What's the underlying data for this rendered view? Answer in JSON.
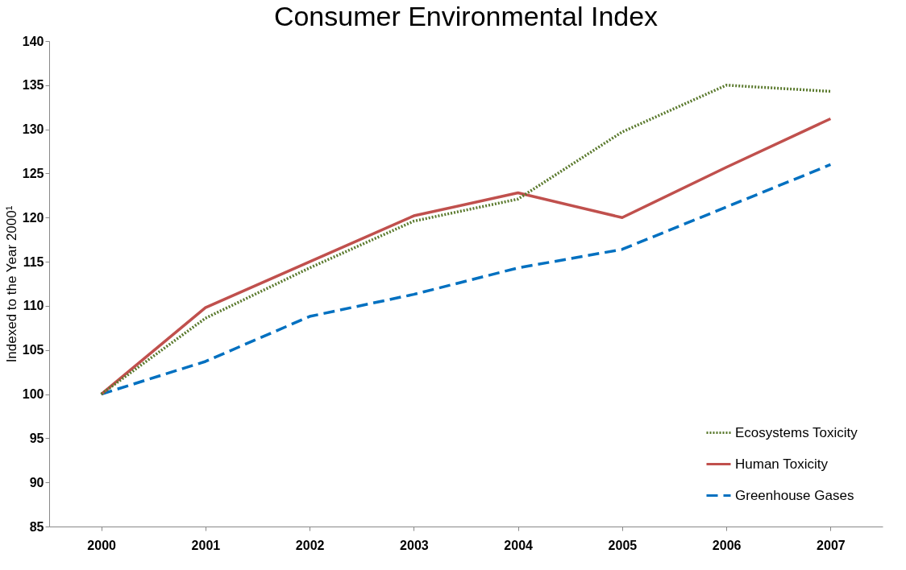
{
  "chart_data": {
    "type": "line",
    "title": "Consumer Environmental Index",
    "ylabel": "Indexed to the Year 2000¹",
    "categories": [
      "2000",
      "2001",
      "2002",
      "2003",
      "2004",
      "2005",
      "2006",
      "2007"
    ],
    "series": [
      {
        "name": "Ecosystems Toxicity",
        "color": "#5b7a2e",
        "line_style": "dotted",
        "values": [
          100,
          108.6,
          114.3,
          119.6,
          122.1,
          129.7,
          135,
          134.3
        ]
      },
      {
        "name": "Human Toxicity",
        "color": "#c0504d",
        "line_style": "solid",
        "values": [
          100,
          109.8,
          115,
          120.2,
          122.8,
          120,
          125.7,
          131.2
        ]
      },
      {
        "name": "Greenhouse Gases",
        "color": "#0070c0",
        "line_style": "dashed",
        "values": [
          100,
          103.7,
          108.8,
          111.3,
          114.3,
          116.4,
          121.2,
          126
        ]
      }
    ],
    "ylim": [
      85,
      140
    ],
    "yticks": [
      85,
      90,
      95,
      100,
      105,
      110,
      115,
      120,
      125,
      130,
      135,
      140
    ],
    "grid": false,
    "legend": "bottom right",
    "marker": "none"
  }
}
